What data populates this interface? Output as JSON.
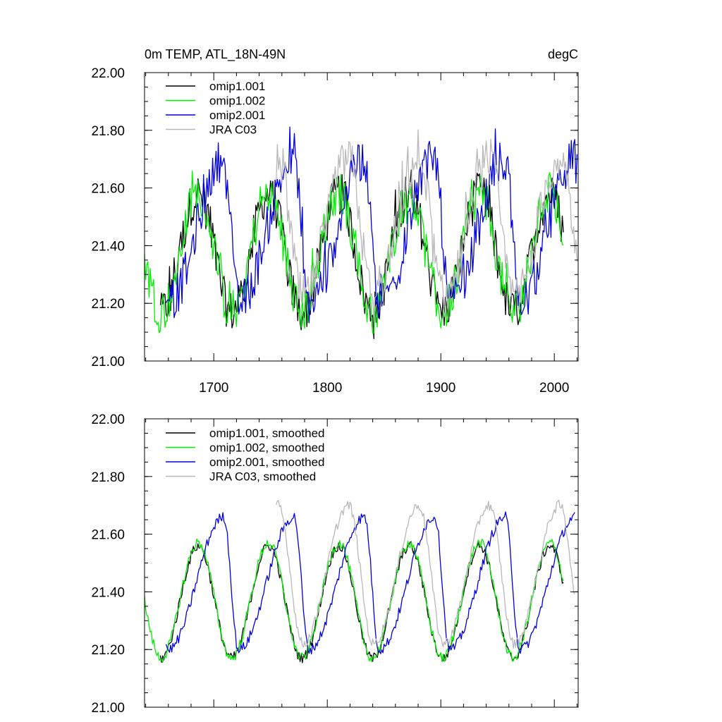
{
  "chart_data": [
    {
      "type": "line",
      "title_left": "0m TEMP, ATL_18N-49N",
      "title_right": "degC",
      "xlabel": "",
      "ylabel": "",
      "xlim": [
        1639,
        2021
      ],
      "ylim": [
        21.0,
        22.0
      ],
      "x_ticks": [
        "1700",
        "1800",
        "1900",
        "2000"
      ],
      "y_ticks": [
        "21.00",
        "21.20",
        "21.40",
        "21.60",
        "21.80",
        "22.00"
      ],
      "legend_position": "top-left",
      "series": [
        {
          "name": "omip1.001",
          "color": "#000000",
          "x_start": 1653,
          "x_end": 2008,
          "cycle": {
            "start": 1648,
            "period": 62,
            "min_phase": 0.09,
            "max_phase": 0.62,
            "min": 21.17,
            "max": 21.58
          }
        },
        {
          "name": "omip1.002",
          "color": "#00ee00",
          "x_start": 1639,
          "x_end": 2008,
          "cycle": {
            "start": 1648,
            "period": 62,
            "min_phase": 0.09,
            "max_phase": 0.62,
            "min": 21.17,
            "max": 21.58
          }
        },
        {
          "name": "omip2.001",
          "color": "#0000dd",
          "x_start": 1658,
          "x_end": 2020,
          "cycle": {
            "start": 1648,
            "period": 62,
            "min_phase": 0.19,
            "max_phase": 0.98,
            "min": 21.2,
            "max": 21.7
          }
        },
        {
          "name": "JRA C03",
          "color": "#b8b8b8",
          "x_start": 1755,
          "x_end": 2020,
          "cycle": {
            "start": 1740,
            "period": 62,
            "min_phase": 0.62,
            "max_phase": 0.27,
            "min": 21.22,
            "max": 21.7
          }
        }
      ]
    },
    {
      "type": "line",
      "title_left": "",
      "title_right": "",
      "xlabel": "",
      "ylabel": "",
      "xlim": [
        1639,
        2021
      ],
      "ylim": [
        21.0,
        22.0
      ],
      "x_ticks": [],
      "y_ticks": [
        "21.00",
        "21.20",
        "21.40",
        "21.60",
        "21.80",
        "22.00"
      ],
      "legend_position": "top-left",
      "series": [
        {
          "name": "omip1.001, smoothed",
          "color": "#000000",
          "x_start": 1653,
          "x_end": 2008,
          "cycle": {
            "start": 1648,
            "period": 62,
            "min_phase": 0.09,
            "max_phase": 0.62,
            "min": 21.17,
            "max": 21.56
          }
        },
        {
          "name": "omip1.002, smoothed",
          "color": "#00ee00",
          "x_start": 1639,
          "x_end": 2008,
          "cycle": {
            "start": 1648,
            "period": 62,
            "min_phase": 0.09,
            "max_phase": 0.62,
            "min": 21.17,
            "max": 21.57
          }
        },
        {
          "name": "omip2.001, smoothed",
          "color": "#0000dd",
          "x_start": 1658,
          "x_end": 2018,
          "cycle": {
            "start": 1648,
            "period": 62,
            "min_phase": 0.19,
            "max_phase": 0.98,
            "min": 21.2,
            "max": 21.66
          }
        },
        {
          "name": "JRA C03, smoothed",
          "color": "#b8b8b8",
          "x_start": 1755,
          "x_end": 2018,
          "cycle": {
            "start": 1740,
            "period": 62,
            "min_phase": 0.62,
            "max_phase": 0.27,
            "min": 21.22,
            "max": 21.7
          }
        }
      ]
    }
  ]
}
